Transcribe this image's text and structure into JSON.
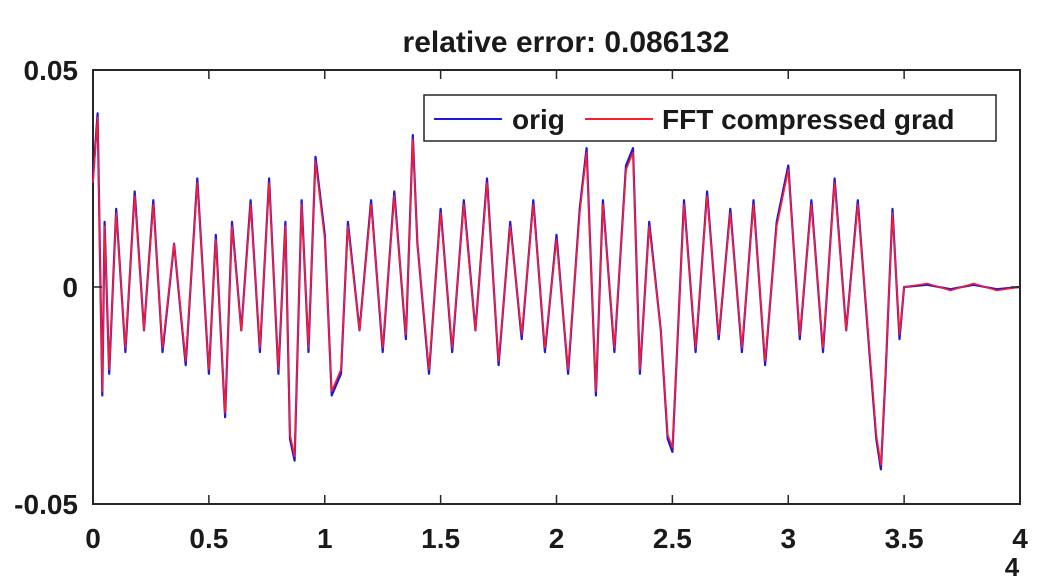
{
  "chart_data": {
    "type": "line",
    "title": "relative error: 0.086132",
    "xlabel": "",
    "ylabel": "",
    "xlim": [
      0,
      4
    ],
    "ylim": [
      -0.05,
      0.05
    ],
    "x_exponent_label": "4",
    "x_ticks": [
      {
        "value": 0,
        "label": "0"
      },
      {
        "value": 0.5,
        "label": "0.5"
      },
      {
        "value": 1,
        "label": "1"
      },
      {
        "value": 1.5,
        "label": "1.5"
      },
      {
        "value": 2,
        "label": "2"
      },
      {
        "value": 2.5,
        "label": "2.5"
      },
      {
        "value": 3,
        "label": "3"
      },
      {
        "value": 3.5,
        "label": "3.5"
      },
      {
        "value": 4,
        "label": "4"
      }
    ],
    "y_ticks": [
      {
        "value": 0.05,
        "label": "0.05"
      },
      {
        "value": 0,
        "label": "0"
      },
      {
        "value": -0.05,
        "label": "-0.05"
      }
    ],
    "grid": false,
    "legend_position": "top-right",
    "series": [
      {
        "name": "orig",
        "color": "#1a1adb",
        "x": [
          0,
          0.02,
          0.04,
          0.05,
          0.07,
          0.1,
          0.14,
          0.18,
          0.22,
          0.26,
          0.3,
          0.35,
          0.4,
          0.45,
          0.5,
          0.53,
          0.57,
          0.6,
          0.64,
          0.68,
          0.72,
          0.76,
          0.8,
          0.83,
          0.85,
          0.87,
          0.9,
          0.93,
          0.96,
          1.0,
          1.03,
          1.07,
          1.1,
          1.15,
          1.2,
          1.25,
          1.3,
          1.35,
          1.38,
          1.4,
          1.45,
          1.5,
          1.55,
          1.6,
          1.65,
          1.7,
          1.75,
          1.8,
          1.85,
          1.9,
          1.95,
          2.0,
          2.05,
          2.1,
          2.13,
          2.17,
          2.2,
          2.25,
          2.3,
          2.33,
          2.36,
          2.4,
          2.45,
          2.48,
          2.5,
          2.55,
          2.6,
          2.65,
          2.7,
          2.75,
          2.8,
          2.85,
          2.9,
          2.95,
          3.0,
          3.05,
          3.1,
          3.15,
          3.2,
          3.25,
          3.3,
          3.35,
          3.38,
          3.4,
          3.42,
          3.45,
          3.48,
          3.5,
          3.6,
          3.7,
          3.8,
          3.9,
          4.0
        ],
        "y": [
          0.025,
          0.04,
          -0.025,
          0.015,
          -0.02,
          0.018,
          -0.015,
          0.022,
          -0.01,
          0.02,
          -0.015,
          0.01,
          -0.018,
          0.025,
          -0.02,
          0.012,
          -0.03,
          0.015,
          -0.01,
          0.02,
          -0.015,
          0.025,
          -0.02,
          0.015,
          -0.035,
          -0.04,
          0.02,
          -0.015,
          0.03,
          0.012,
          -0.025,
          -0.02,
          0.015,
          -0.01,
          0.02,
          -0.015,
          0.022,
          -0.012,
          0.035,
          0.01,
          -0.02,
          0.018,
          -0.015,
          0.02,
          -0.01,
          0.025,
          -0.018,
          0.015,
          -0.012,
          0.02,
          -0.015,
          0.012,
          -0.02,
          0.018,
          0.032,
          -0.025,
          0.02,
          -0.015,
          0.028,
          0.032,
          -0.02,
          0.015,
          -0.01,
          -0.035,
          -0.038,
          0.02,
          -0.015,
          0.022,
          -0.012,
          0.018,
          -0.015,
          0.02,
          -0.018,
          0.015,
          0.028,
          -0.012,
          0.02,
          -0.015,
          0.025,
          -0.01,
          0.02,
          -0.015,
          -0.035,
          -0.042,
          -0.02,
          0.018,
          -0.012,
          0.0,
          0.0005,
          -0.0005,
          0.0005,
          -0.0005,
          0.0
        ]
      },
      {
        "name": "FFT compressed grad",
        "color": "#ff1a2e",
        "x": [
          0,
          0.02,
          0.04,
          0.05,
          0.07,
          0.1,
          0.14,
          0.18,
          0.22,
          0.26,
          0.3,
          0.35,
          0.4,
          0.45,
          0.5,
          0.53,
          0.57,
          0.6,
          0.64,
          0.68,
          0.72,
          0.76,
          0.8,
          0.83,
          0.85,
          0.87,
          0.9,
          0.93,
          0.96,
          1.0,
          1.03,
          1.07,
          1.1,
          1.15,
          1.2,
          1.25,
          1.3,
          1.35,
          1.38,
          1.4,
          1.45,
          1.5,
          1.55,
          1.6,
          1.65,
          1.7,
          1.75,
          1.8,
          1.85,
          1.9,
          1.95,
          2.0,
          2.05,
          2.1,
          2.13,
          2.17,
          2.2,
          2.25,
          2.3,
          2.33,
          2.36,
          2.4,
          2.45,
          2.48,
          2.5,
          2.55,
          2.6,
          2.65,
          2.7,
          2.75,
          2.8,
          2.85,
          2.9,
          2.95,
          3.0,
          3.05,
          3.1,
          3.15,
          3.2,
          3.25,
          3.3,
          3.35,
          3.38,
          3.4,
          3.42,
          3.45,
          3.48,
          3.5,
          3.6,
          3.7,
          3.8,
          3.9,
          4.0
        ],
        "y": [
          0.024,
          0.039,
          -0.024,
          0.014,
          -0.019,
          0.017,
          -0.014,
          0.021,
          -0.01,
          0.019,
          -0.014,
          0.01,
          -0.017,
          0.024,
          -0.019,
          0.011,
          -0.029,
          0.014,
          -0.01,
          0.019,
          -0.014,
          0.024,
          -0.019,
          0.014,
          -0.034,
          -0.039,
          0.019,
          -0.014,
          0.029,
          0.011,
          -0.024,
          -0.019,
          0.014,
          -0.01,
          0.019,
          -0.014,
          0.021,
          -0.011,
          0.034,
          0.01,
          -0.019,
          0.017,
          -0.014,
          0.019,
          -0.01,
          0.024,
          -0.017,
          0.014,
          -0.011,
          0.019,
          -0.014,
          0.011,
          -0.019,
          0.017,
          0.031,
          -0.024,
          0.019,
          -0.014,
          0.027,
          0.031,
          -0.019,
          0.014,
          -0.01,
          -0.034,
          -0.037,
          0.019,
          -0.014,
          0.021,
          -0.011,
          0.017,
          -0.014,
          0.019,
          -0.017,
          0.014,
          0.027,
          -0.011,
          0.019,
          -0.014,
          0.024,
          -0.01,
          0.019,
          -0.014,
          -0.034,
          -0.041,
          -0.019,
          0.017,
          -0.011,
          0.0,
          0.0008,
          -0.0008,
          0.0008,
          -0.0008,
          0.0
        ]
      }
    ]
  }
}
